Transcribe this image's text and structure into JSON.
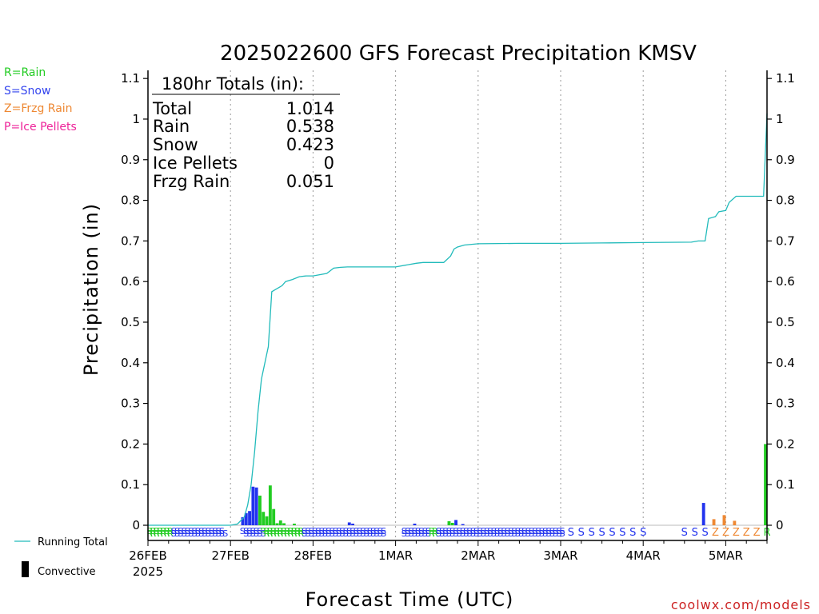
{
  "header": {
    "title": "2025022600 GFS Forecast Precipitation KMSV"
  },
  "key": [
    {
      "label": "R=Rain",
      "color": "#22cc22"
    },
    {
      "label": "S=Snow",
      "color": "#3344ee"
    },
    {
      "label": "Z=Frzg Rain",
      "color": "#ee8833"
    },
    {
      "label": "P=Ice Pellets",
      "color": "#ee2299"
    }
  ],
  "totals": {
    "heading": "180hr Totals (in):",
    "rows": [
      {
        "label": "Total",
        "value": "1.014"
      },
      {
        "label": "Rain",
        "value": "0.538"
      },
      {
        "label": "Snow",
        "value": "0.423"
      },
      {
        "label": "Ice Pellets",
        "value": "0"
      },
      {
        "label": "Frzg Rain",
        "value": "0.051"
      }
    ]
  },
  "legend": {
    "running_total": "Running Total",
    "convective": "Convective"
  },
  "credit": "coolwx.com/models",
  "chart_data": {
    "type": "bar",
    "title": "2025022600 GFS Forecast Precipitation KMSV",
    "xlabel": "Forecast Time (UTC)",
    "ylabel": "Precipitation (in)",
    "ylim": [
      0,
      1.12
    ],
    "xlim_hours": [
      0,
      180
    ],
    "y_ticks": [
      0,
      0.1,
      0.2,
      0.3,
      0.4,
      0.5,
      0.6,
      0.7,
      0.8,
      0.9,
      1,
      1.1
    ],
    "y_tick_labels": [
      "0",
      "0.1",
      "0.2",
      "0.3",
      "0.4",
      "0.5",
      "0.6",
      "0.7",
      "0.8",
      "0.9",
      "1",
      "1.1"
    ],
    "x_ticks": [
      {
        "hour": 0,
        "label": "26FEB",
        "sublabel": "2025"
      },
      {
        "hour": 24,
        "label": "27FEB"
      },
      {
        "hour": 48,
        "label": "28FEB"
      },
      {
        "hour": 72,
        "label": "1MAR"
      },
      {
        "hour": 96,
        "label": "2MAR"
      },
      {
        "hour": 120,
        "label": "3MAR"
      },
      {
        "hour": 144,
        "label": "4MAR"
      },
      {
        "hour": 168,
        "label": "5MAR"
      }
    ],
    "grid": "vertical dotted at day boundaries",
    "colors": {
      "rain": "#22cc22",
      "snow": "#2233ee",
      "frzg_rain": "#ee8833",
      "ice_pellets": "#ee2299",
      "running_total": "#22bbbb"
    },
    "bars": [
      {
        "hour": 28,
        "value": 0.02,
        "type": "snow"
      },
      {
        "hour": 29,
        "value": 0.03,
        "type": "snow"
      },
      {
        "hour": 30,
        "value": 0.035,
        "type": "snow"
      },
      {
        "hour": 31,
        "value": 0.095,
        "type": "snow"
      },
      {
        "hour": 32,
        "value": 0.093,
        "type": "snow"
      },
      {
        "hour": 33,
        "value": 0.073,
        "type": "rain"
      },
      {
        "hour": 34,
        "value": 0.033,
        "type": "rain"
      },
      {
        "hour": 35,
        "value": 0.022,
        "type": "rain"
      },
      {
        "hour": 36,
        "value": 0.098,
        "type": "rain"
      },
      {
        "hour": 37,
        "value": 0.04,
        "type": "rain"
      },
      {
        "hour": 38,
        "value": 0.005,
        "type": "rain"
      },
      {
        "hour": 39,
        "value": 0.012,
        "type": "rain"
      },
      {
        "hour": 40,
        "value": 0.005,
        "type": "rain"
      },
      {
        "hour": 43,
        "value": 0.004,
        "type": "rain"
      },
      {
        "hour": 59,
        "value": 0.007,
        "type": "snow"
      },
      {
        "hour": 60,
        "value": 0.004,
        "type": "snow"
      },
      {
        "hour": 78,
        "value": 0.004,
        "type": "snow"
      },
      {
        "hour": 88,
        "value": 0.01,
        "type": "rain"
      },
      {
        "hour": 89,
        "value": 0.006,
        "type": "rain"
      },
      {
        "hour": 90,
        "value": 0.013,
        "type": "snow"
      },
      {
        "hour": 92,
        "value": 0.003,
        "type": "snow"
      },
      {
        "hour": 162,
        "value": 0.055,
        "type": "snow"
      },
      {
        "hour": 165,
        "value": 0.015,
        "type": "frzg_rain"
      },
      {
        "hour": 168,
        "value": 0.025,
        "type": "frzg_rain"
      },
      {
        "hour": 171,
        "value": 0.011,
        "type": "frzg_rain"
      },
      {
        "hour": 180,
        "value": 0.2,
        "type": "rain"
      }
    ],
    "running_total": {
      "hours": [
        0,
        24,
        26,
        28,
        29,
        30,
        31,
        32,
        33,
        34,
        35,
        36,
        37,
        38,
        39,
        40,
        42,
        44,
        46,
        48,
        52,
        54,
        56,
        58,
        60,
        64,
        68,
        72,
        78,
        80,
        86,
        88,
        89,
        90,
        92,
        96,
        108,
        120,
        132,
        144,
        158,
        160,
        162,
        163,
        165,
        166,
        168,
        169,
        171,
        174,
        179,
        180
      ],
      "values": [
        0,
        0,
        0.003,
        0.02,
        0.05,
        0.1,
        0.18,
        0.28,
        0.36,
        0.4,
        0.44,
        0.575,
        0.58,
        0.585,
        0.59,
        0.6,
        0.605,
        0.612,
        0.614,
        0.614,
        0.62,
        0.633,
        0.635,
        0.636,
        0.636,
        0.636,
        0.636,
        0.636,
        0.645,
        0.647,
        0.647,
        0.663,
        0.68,
        0.685,
        0.69,
        0.693,
        0.694,
        0.694,
        0.695,
        0.696,
        0.697,
        0.7,
        0.7,
        0.755,
        0.76,
        0.772,
        0.775,
        0.795,
        0.81,
        0.81,
        0.81,
        1.014
      ]
    },
    "precip_type_rows": {
      "line1": [
        {
          "h0": 0,
          "h1": 7,
          "type": "rain"
        },
        {
          "h0": 7,
          "h1": 22,
          "type": "snow"
        },
        {
          "h0": 27,
          "h1": 33,
          "type": "snow"
        },
        {
          "h0": 33,
          "h1": 45,
          "type": "rain"
        },
        {
          "h0": 45,
          "h1": 69,
          "type": "snow"
        },
        {
          "h0": 74,
          "h1": 82,
          "type": "snow"
        },
        {
          "h0": 82,
          "h1": 84,
          "type": "rain"
        },
        {
          "h0": 84,
          "h1": 115,
          "type": "snow"
        },
        {
          "h0": 115,
          "h1": 121,
          "type": "snow"
        }
      ],
      "line2": [
        {
          "h0": 0,
          "h1": 7,
          "type": "rain"
        },
        {
          "h0": 7,
          "h1": 23,
          "type": "snow"
        },
        {
          "h0": 28,
          "h1": 34,
          "type": "snow"
        },
        {
          "h0": 34,
          "h1": 45,
          "type": "rain"
        },
        {
          "h0": 45,
          "h1": 69,
          "type": "snow"
        },
        {
          "h0": 74,
          "h1": 82,
          "type": "snow"
        },
        {
          "h0": 82,
          "h1": 84,
          "type": "rain"
        },
        {
          "h0": 84,
          "h1": 115,
          "type": "snow"
        },
        {
          "h0": 115,
          "h1": 121,
          "type": "snow"
        }
      ],
      "sparse": [
        {
          "hour": 123,
          "type": "snow"
        },
        {
          "hour": 126,
          "type": "snow"
        },
        {
          "hour": 129,
          "type": "snow"
        },
        {
          "hour": 132,
          "type": "snow"
        },
        {
          "hour": 135,
          "type": "snow"
        },
        {
          "hour": 138,
          "type": "snow"
        },
        {
          "hour": 141,
          "type": "snow"
        },
        {
          "hour": 144,
          "type": "snow"
        },
        {
          "hour": 156,
          "type": "snow"
        },
        {
          "hour": 159,
          "type": "snow"
        },
        {
          "hour": 162,
          "type": "snow"
        },
        {
          "hour": 165,
          "type": "frzg_rain"
        },
        {
          "hour": 168,
          "type": "frzg_rain"
        },
        {
          "hour": 171,
          "type": "frzg_rain"
        },
        {
          "hour": 174,
          "type": "frzg_rain"
        },
        {
          "hour": 177,
          "type": "frzg_rain"
        },
        {
          "hour": 180,
          "type": "rain"
        }
      ]
    }
  }
}
